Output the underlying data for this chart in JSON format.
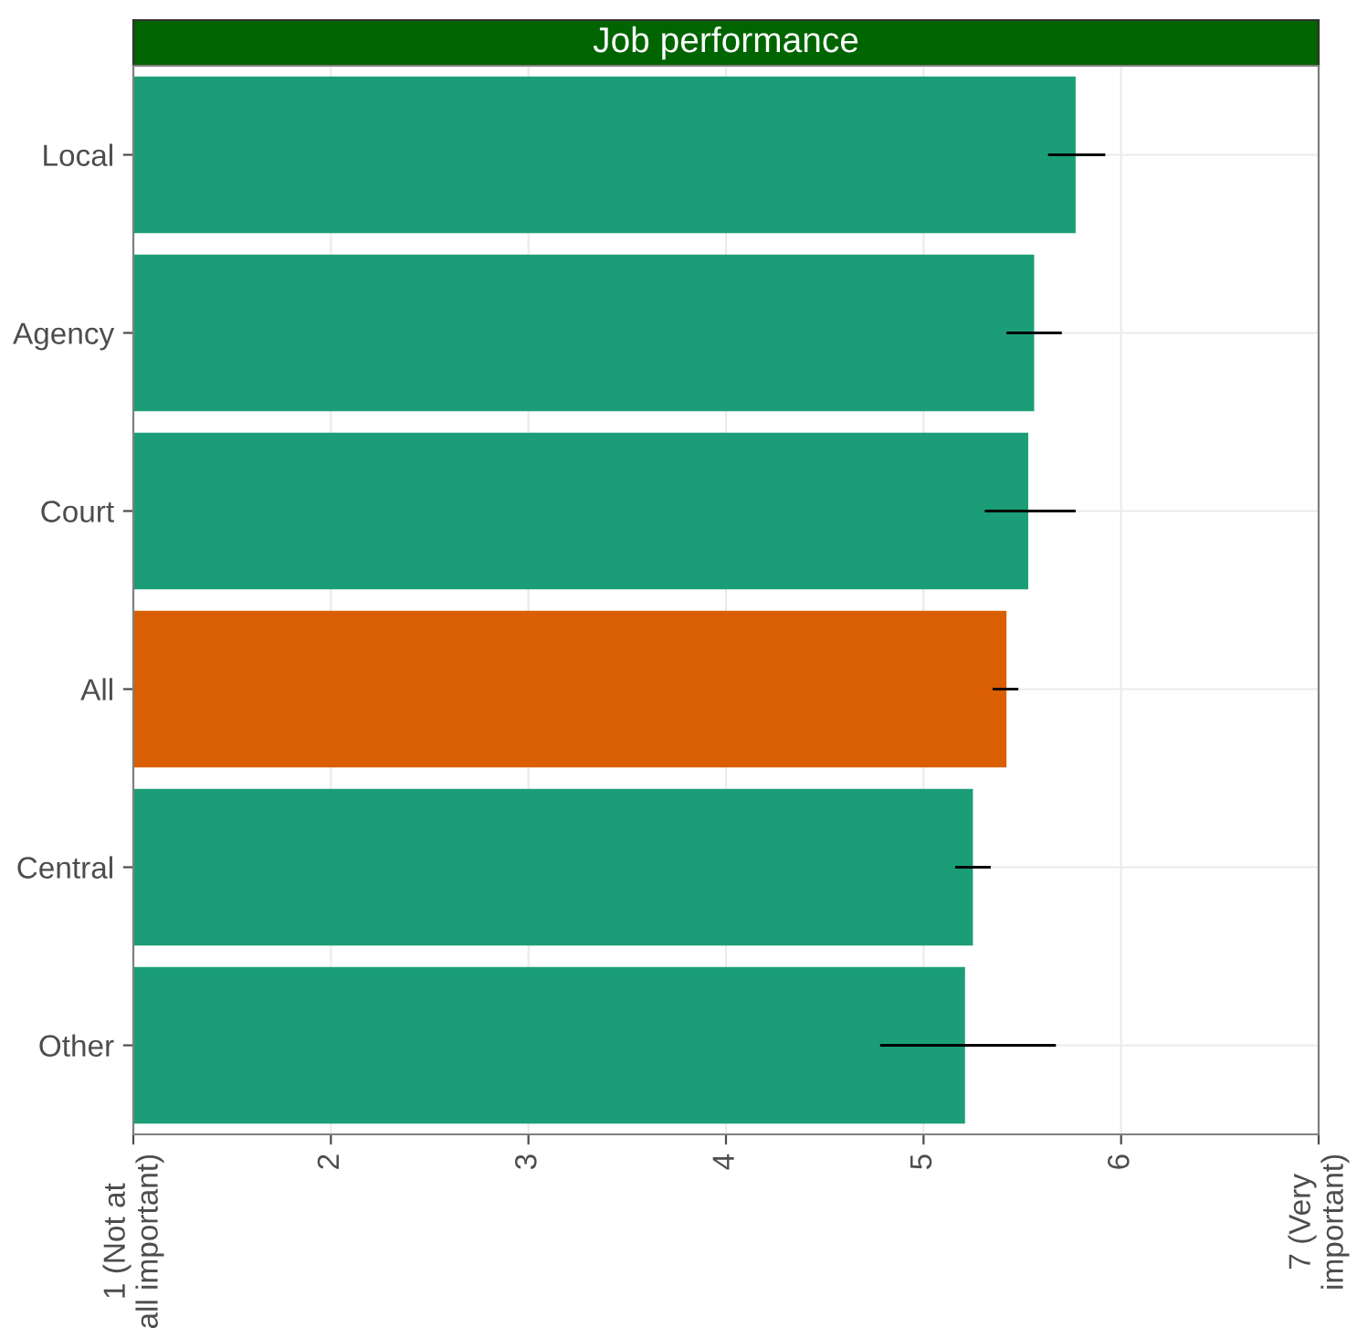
{
  "chart_data": {
    "type": "bar",
    "orientation": "horizontal",
    "title": "Job performance",
    "categories": [
      "Local",
      "Agency",
      "Court",
      "All",
      "Central",
      "Other"
    ],
    "values": [
      5.77,
      5.56,
      5.53,
      5.42,
      5.25,
      5.21
    ],
    "colors": [
      "#1b9e77",
      "#1b9e77",
      "#1b9e77",
      "#d95f02",
      "#1b9e77",
      "#1b9e77"
    ],
    "errors": [
      [
        5.63,
        5.92
      ],
      [
        5.42,
        5.7
      ],
      [
        5.31,
        5.77
      ],
      [
        5.35,
        5.48
      ],
      [
        5.16,
        5.34
      ],
      [
        4.78,
        5.67
      ]
    ],
    "xlim": [
      1,
      7
    ],
    "xticks": [
      {
        "value": 1,
        "label": "1 (Not at\nall important)"
      },
      2,
      3,
      4,
      5,
      6,
      {
        "value": 7,
        "label": "7 (Very\nimportant)"
      }
    ],
    "grid": true
  }
}
